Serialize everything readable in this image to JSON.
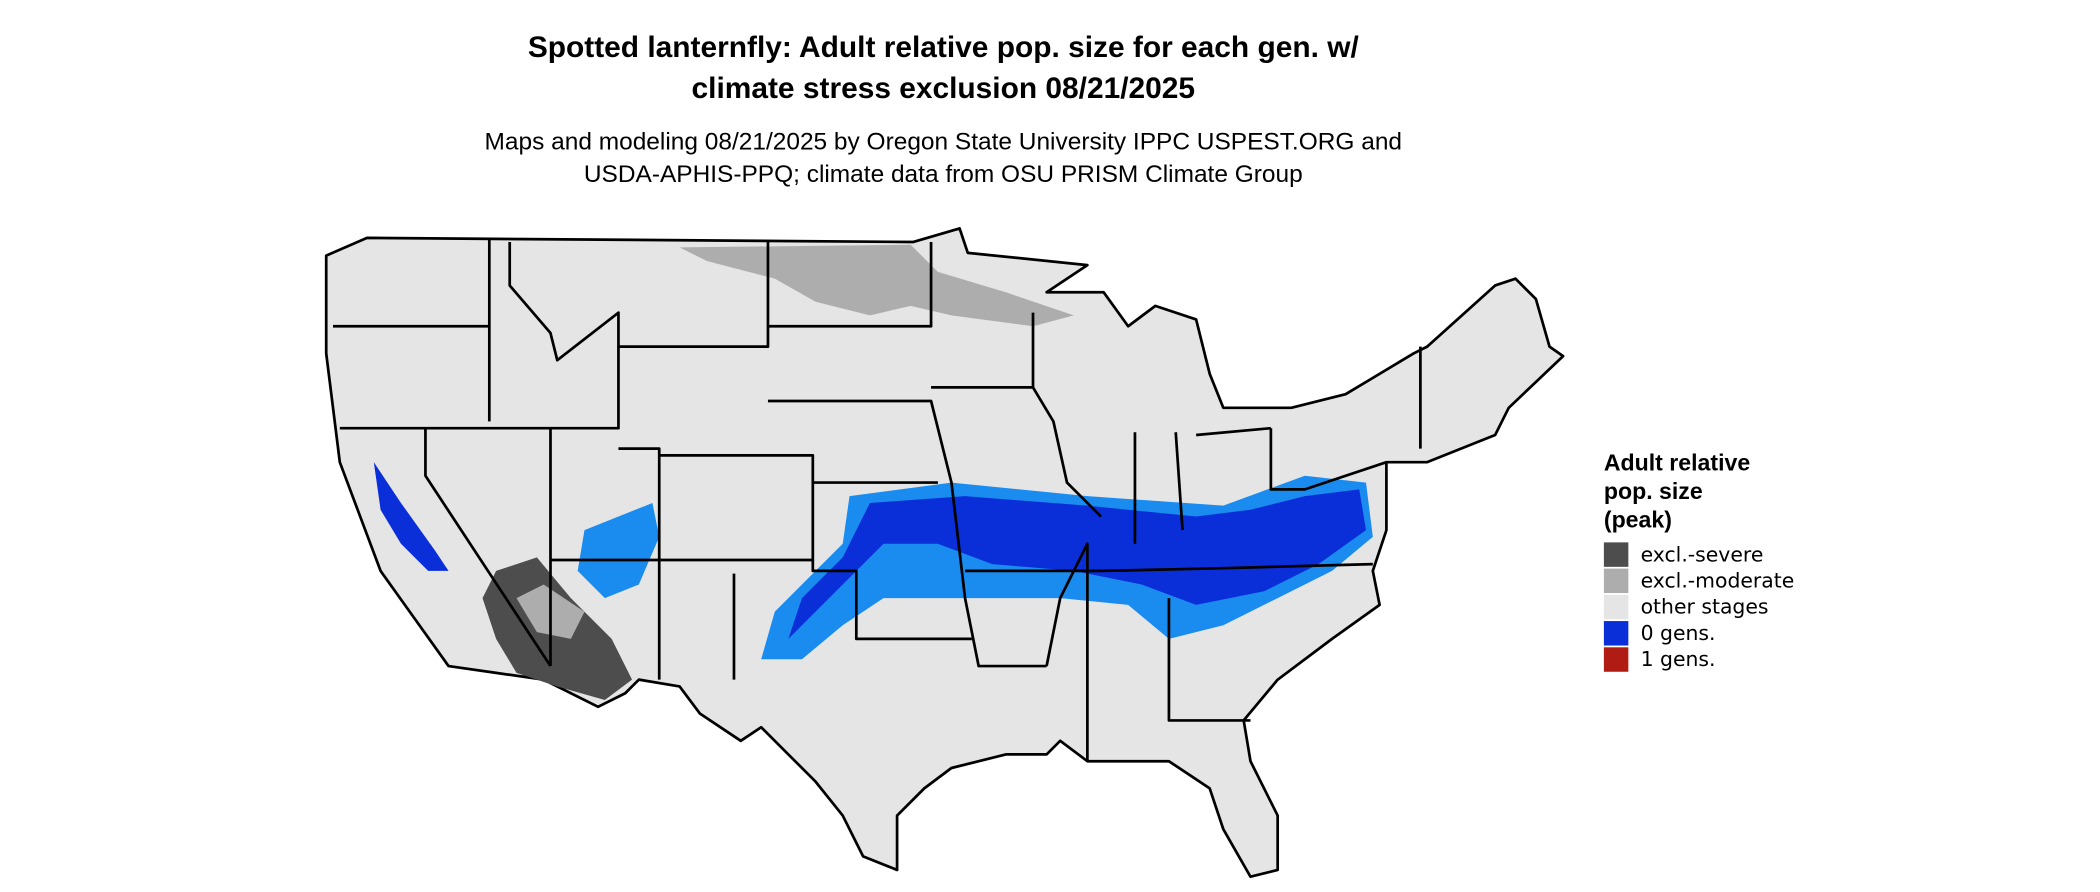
{
  "title": [
    "Spotted lanternfly: Adult relative pop. size for each gen. w/",
    "climate stress exclusion 08/21/2025"
  ],
  "subtitle": [
    "Maps and modeling 08/21/2025 by Oregon State University IPPC USPEST.ORG and",
    "USDA-APHIS-PPQ; climate data from OSU PRISM Climate Group"
  ],
  "legend": {
    "title": [
      "Adult relative",
      "pop. size",
      "(peak)"
    ],
    "items": [
      {
        "label": "excl.-severe",
        "color": "#4d4d4d"
      },
      {
        "label": "excl.-moderate",
        "color": "#adadad"
      },
      {
        "label": "other stages",
        "color": "#e5e5e5"
      },
      {
        "label": "0 gens.",
        "color": "#0a2fd8"
      },
      {
        "label": "1 gens.",
        "color": "#b01c14"
      }
    ]
  }
}
